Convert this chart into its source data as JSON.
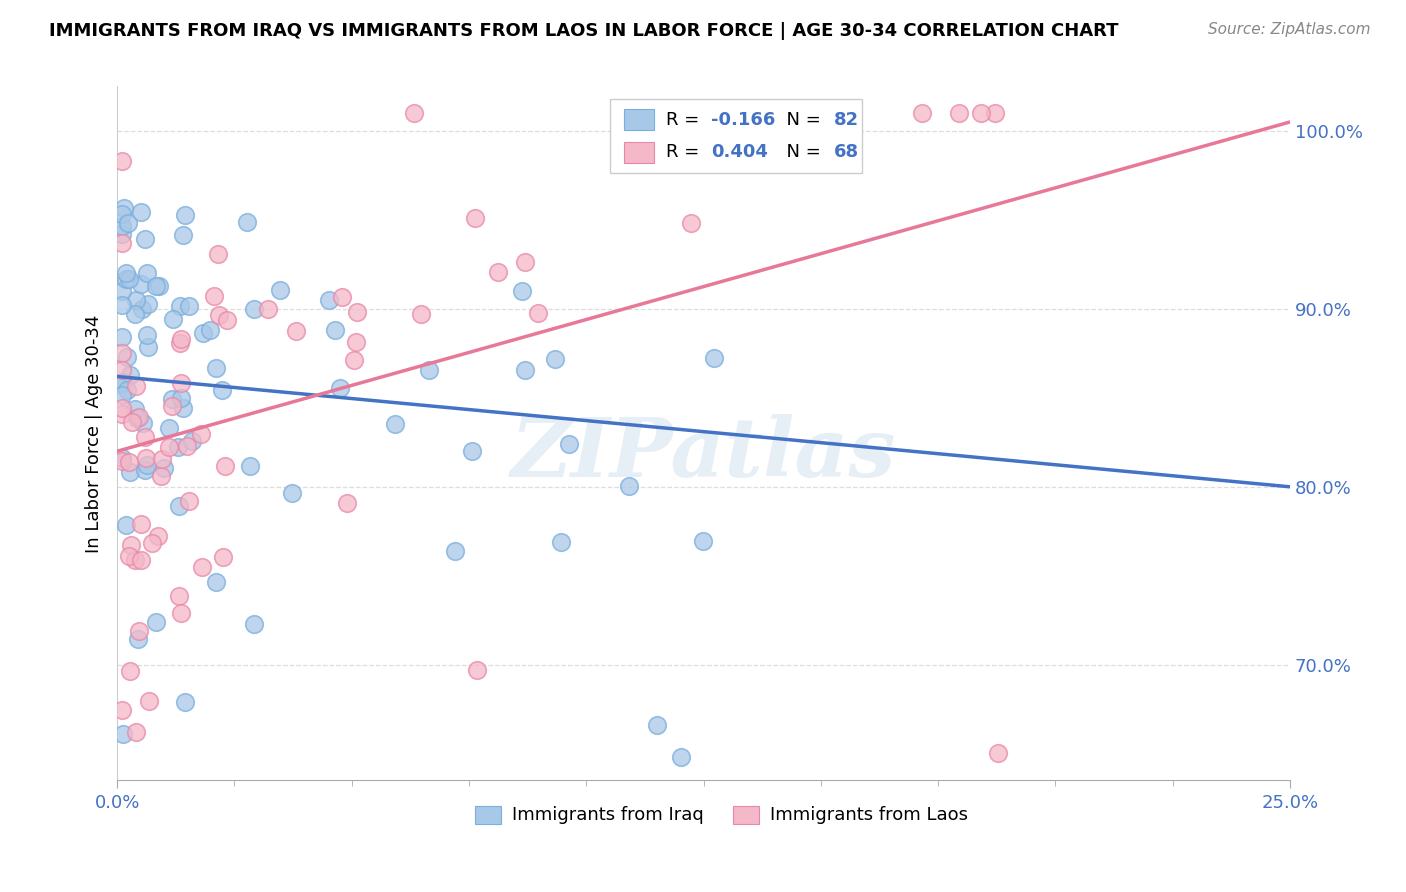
{
  "title": "IMMIGRANTS FROM IRAQ VS IMMIGRANTS FROM LAOS IN LABOR FORCE | AGE 30-34 CORRELATION CHART",
  "source": "Source: ZipAtlas.com",
  "ylabel": "In Labor Force | Age 30-34",
  "xlim": [
    0.0,
    0.25
  ],
  "ylim": [
    0.635,
    1.025
  ],
  "yticks": [
    0.7,
    0.8,
    0.9,
    1.0
  ],
  "ytick_labels": [
    "70.0%",
    "80.0%",
    "90.0%",
    "100.0%"
  ],
  "xtick_labels": [
    "0.0%",
    "25.0%"
  ],
  "iraq_color": "#a8c8e8",
  "laos_color": "#f4b8c8",
  "iraq_edge_color": "#7aaedc",
  "laos_edge_color": "#e888a8",
  "iraq_line_color": "#4472c4",
  "laos_line_color": "#e87898",
  "R_iraq": -0.166,
  "N_iraq": 82,
  "R_laos": 0.404,
  "N_laos": 68,
  "watermark": "ZIPatlas",
  "iraq_line_x0": 0.0,
  "iraq_line_y0": 0.862,
  "iraq_line_x1": 0.25,
  "iraq_line_y1": 0.8,
  "laos_line_x0": 0.0,
  "laos_line_y0": 0.82,
  "laos_line_x1": 0.25,
  "laos_line_y1": 1.005,
  "yticklabel_color": "#4472c4",
  "xticklabel_color": "#4472c4",
  "grid_color": "#dddddd",
  "background_color": "#ffffff"
}
